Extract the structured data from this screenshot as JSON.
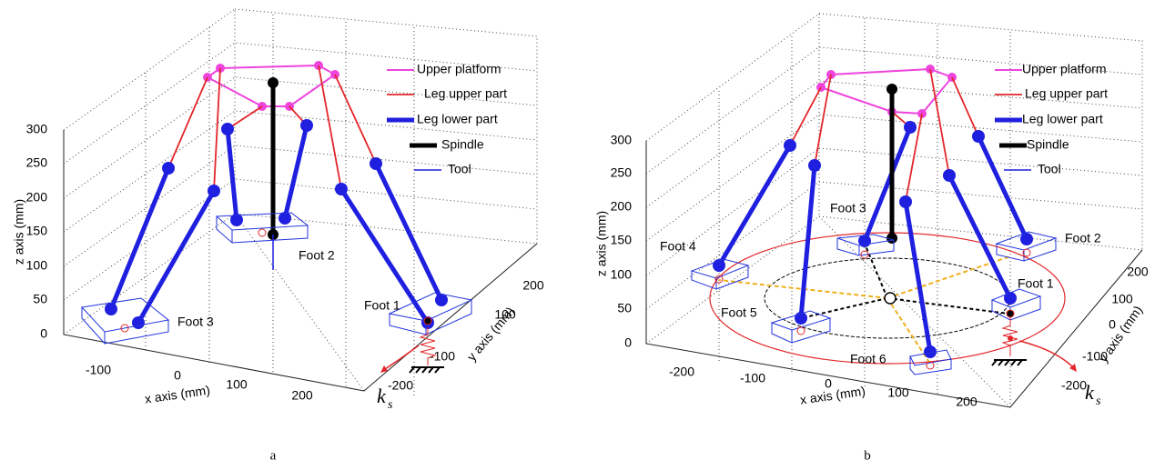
{
  "panels": [
    {
      "caption": "a",
      "axes": {
        "x_label": "x axis (mm)",
        "y_label": "y axis (mm)",
        "z_label": "z axis (mm)",
        "x_ticks": [
          "-100",
          "0",
          "100",
          "200"
        ],
        "y_ticks": [
          "200",
          "100",
          "-100",
          "-200"
        ],
        "z_ticks": [
          "0",
          "50",
          "100",
          "150",
          "200",
          "250",
          "300"
        ]
      },
      "legend": [
        "Upper platform",
        "Leg upper part",
        "Leg lower part",
        "Spindle",
        "Tool"
      ],
      "feet": [
        "Foot 2",
        "Foot 1",
        "Foot 3"
      ],
      "spring_label": {
        "main": "k",
        "sub": "s"
      }
    },
    {
      "caption": "b",
      "axes": {
        "x_label": "x axis (mm)",
        "y_label": "y axis (mm)",
        "z_label": "z axis (mm)",
        "x_ticks": [
          "-200",
          "-100",
          "0",
          "100",
          "200"
        ],
        "y_ticks": [
          "200",
          "100",
          "0",
          "-100",
          "-200"
        ],
        "z_ticks": [
          "0",
          "50",
          "100",
          "150",
          "200",
          "250",
          "300"
        ]
      },
      "legend": [
        "Upper platform",
        "Leg upper part",
        "Leg lower part",
        "Spindle",
        "Tool"
      ],
      "feet": [
        "Foot 3",
        "Foot 4",
        "Foot 2",
        "Foot 1",
        "Foot 5",
        "Foot 6"
      ],
      "spring_label": {
        "main": "k",
        "sub": "s"
      }
    }
  ]
}
